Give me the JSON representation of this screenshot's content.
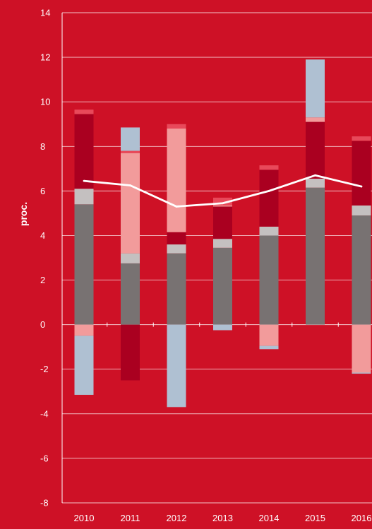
{
  "chart_data": {
    "type": "bar",
    "stacked": true,
    "ylabel": "proc.",
    "ylim": [
      -8,
      14
    ],
    "yticks": [
      14,
      12,
      10,
      8,
      6,
      4,
      2,
      0,
      -2,
      -4,
      -6,
      -8
    ],
    "ytick_labels": [
      "14",
      "12",
      "10",
      "8",
      "6",
      "4",
      "2",
      "0",
      "-2",
      "-4",
      "-6",
      "-8"
    ],
    "categories": [
      "2010",
      "2011",
      "2012",
      "2013",
      "2014",
      "2015",
      "2016"
    ],
    "grid": true,
    "series": [
      {
        "color": "#787272",
        "values": [
          5.4,
          2.75,
          3.2,
          3.45,
          4.0,
          6.15,
          4.9
        ]
      },
      {
        "color": "#C4C0C0",
        "values": [
          0.7,
          0.45,
          0.4,
          0.4,
          0.4,
          0.4,
          0.45
        ]
      },
      {
        "color": "#AA0020",
        "values": [
          3.35,
          -2.5,
          0.55,
          1.45,
          2.55,
          2.55,
          2.9
        ]
      },
      {
        "color": "#F29B9B",
        "values": [
          -0.5,
          4.5,
          4.65,
          0.05,
          -0.95,
          0.2,
          -2.15
        ]
      },
      {
        "color": "#E8495A",
        "values": [
          0.2,
          0.1,
          0.2,
          0.35,
          0.2,
          0.0,
          0.2
        ]
      },
      {
        "color": "#AFC0D2",
        "values": [
          -2.65,
          1.05,
          -3.7,
          -0.25,
          -0.15,
          2.6,
          -0.05
        ]
      }
    ],
    "line": {
      "color": "#FFFFFF",
      "values": [
        6.45,
        6.25,
        5.3,
        5.45,
        6.0,
        6.7,
        6.2
      ]
    }
  }
}
